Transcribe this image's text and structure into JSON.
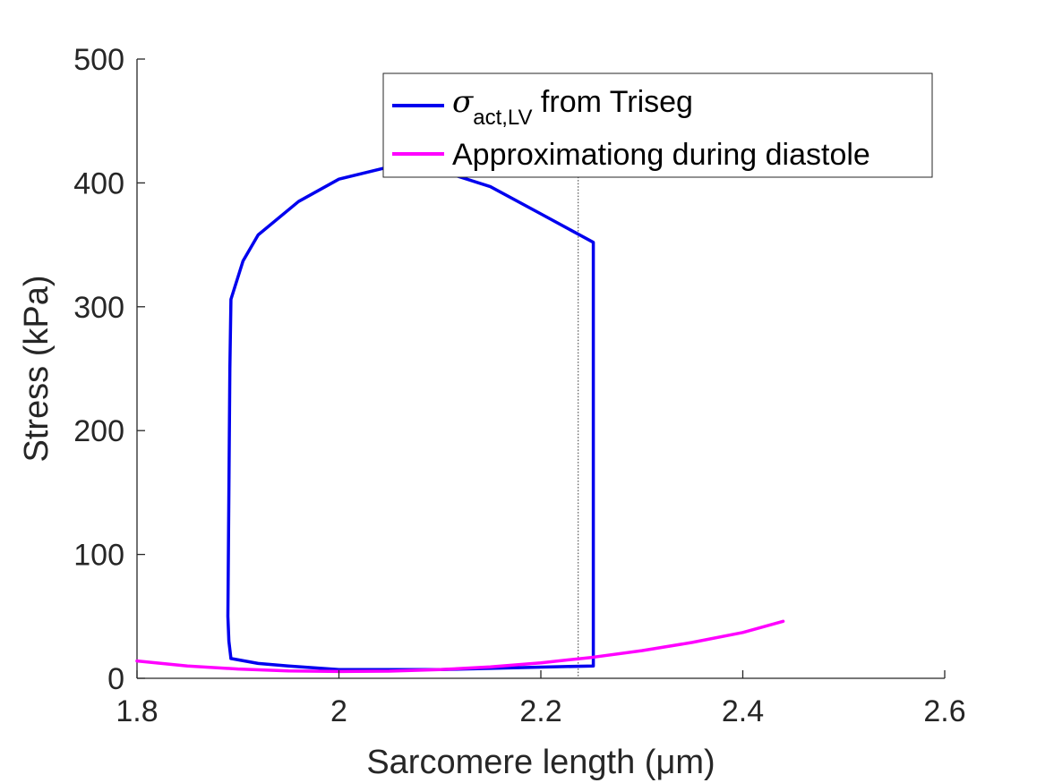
{
  "chart_data": {
    "type": "line",
    "title": "",
    "xlabel": "Sarcomere length (μm)",
    "ylabel": "Stress (kPa)",
    "xlim": [
      1.8,
      2.6
    ],
    "ylim": [
      0,
      500
    ],
    "xticks": [
      1.8,
      2.0,
      2.2,
      2.4,
      2.6
    ],
    "xtick_labels": [
      "1.8",
      "2",
      "2.2",
      "2.4",
      "2.6"
    ],
    "yticks": [
      0,
      100,
      200,
      300,
      400,
      500
    ],
    "ytick_labels": [
      "0",
      "100",
      "200",
      "300",
      "400",
      "500"
    ],
    "grid": false,
    "legend_position": "top-right",
    "reference_line": {
      "x": 2.237,
      "style": "dotted"
    },
    "series": [
      {
        "name_parts": {
          "symbol": "σ",
          "subscript": "act,LV",
          "suffix": " from Triseg"
        },
        "color": "#0000ee",
        "x": [
          1.893,
          1.92,
          1.95,
          2.0,
          2.05,
          2.1,
          2.2,
          2.252,
          2.252,
          2.2,
          2.15,
          2.1,
          2.05,
          2.0,
          1.96,
          1.92,
          1.905,
          1.893,
          1.892,
          1.891,
          1.89,
          1.891,
          1.893
        ],
        "y": [
          16,
          12,
          10,
          7,
          7,
          7,
          9,
          10,
          352,
          375,
          397,
          410,
          413,
          403,
          385,
          358,
          337,
          306,
          250,
          150,
          50,
          30,
          16
        ]
      },
      {
        "name": "Approximationg during diastole",
        "color": "#ff00ff",
        "x": [
          1.8,
          1.85,
          1.9,
          1.95,
          2.0,
          2.05,
          2.1,
          2.15,
          2.2,
          2.25,
          2.3,
          2.35,
          2.4,
          2.44
        ],
        "y": [
          14,
          10,
          7.5,
          6,
          5.5,
          5.8,
          7,
          9.2,
          12.5,
          16.8,
          22.3,
          29,
          37,
          46
        ]
      }
    ]
  }
}
